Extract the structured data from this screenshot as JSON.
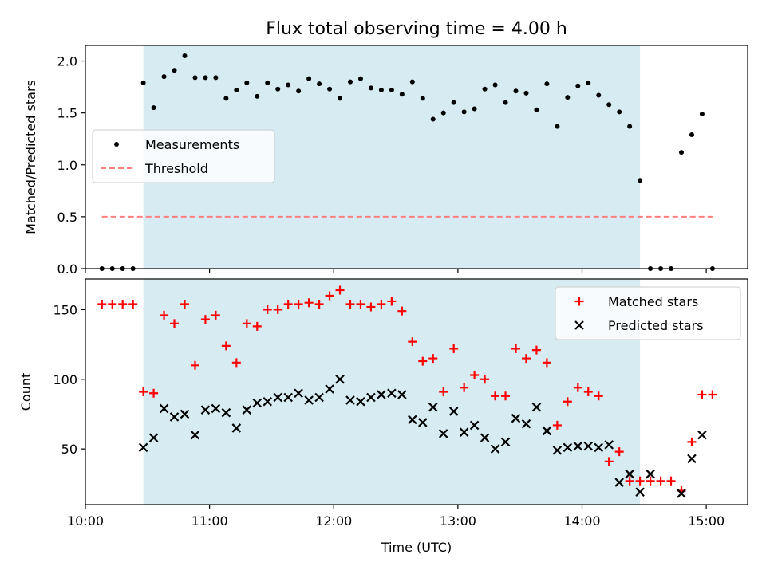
{
  "chart_data": {
    "title": "Flux total observing time = 4.00 h",
    "shaded_region": {
      "start": "10:28",
      "end": "14:28",
      "color": "#add8e6"
    },
    "x_axis": {
      "label": "Time (UTC)",
      "range": [
        "10:00",
        "15:20"
      ],
      "ticks": [
        "10:00",
        "11:00",
        "12:00",
        "13:00",
        "14:00",
        "15:00"
      ]
    },
    "panels": [
      {
        "name": "ratio",
        "type": "scatter",
        "ylabel": "Matched/Predicted stars",
        "ylim": [
          0,
          2.15
        ],
        "yticks": [
          "0.0",
          "0.5",
          "1.0",
          "1.5",
          "2.0"
        ],
        "legend": {
          "position": "center-left"
        },
        "series": [
          {
            "name": "Measurements",
            "marker": "dot",
            "color": "#000000",
            "points": [
              [
                "10:08",
                0
              ],
              [
                "10:13",
                0
              ],
              [
                "10:18",
                0
              ],
              [
                "10:23",
                0
              ],
              [
                "10:28",
                1.79
              ],
              [
                "10:33",
                1.55
              ],
              [
                "10:38",
                1.85
              ],
              [
                "10:43",
                1.91
              ],
              [
                "10:48",
                2.05
              ],
              [
                "10:53",
                1.84
              ],
              [
                "10:58",
                1.84
              ],
              [
                "11:03",
                1.84
              ],
              [
                "11:08",
                1.64
              ],
              [
                "11:13",
                1.72
              ],
              [
                "11:18",
                1.79
              ],
              [
                "11:23",
                1.66
              ],
              [
                "11:28",
                1.79
              ],
              [
                "11:33",
                1.73
              ],
              [
                "11:38",
                1.77
              ],
              [
                "11:43",
                1.71
              ],
              [
                "11:48",
                1.83
              ],
              [
                "11:53",
                1.78
              ],
              [
                "11:58",
                1.73
              ],
              [
                "12:03",
                1.64
              ],
              [
                "12:08",
                1.8
              ],
              [
                "12:13",
                1.83
              ],
              [
                "12:18",
                1.74
              ],
              [
                "12:23",
                1.72
              ],
              [
                "12:28",
                1.72
              ],
              [
                "12:33",
                1.68
              ],
              [
                "12:38",
                1.8
              ],
              [
                "12:43",
                1.64
              ],
              [
                "12:48",
                1.44
              ],
              [
                "12:53",
                1.5
              ],
              [
                "12:58",
                1.6
              ],
              [
                "13:03",
                1.51
              ],
              [
                "13:08",
                1.54
              ],
              [
                "13:13",
                1.73
              ],
              [
                "13:18",
                1.77
              ],
              [
                "13:23",
                1.6
              ],
              [
                "13:28",
                1.71
              ],
              [
                "13:33",
                1.69
              ],
              [
                "13:38",
                1.53
              ],
              [
                "13:43",
                1.78
              ],
              [
                "13:48",
                1.37
              ],
              [
                "13:53",
                1.65
              ],
              [
                "13:58",
                1.76
              ],
              [
                "14:03",
                1.79
              ],
              [
                "14:08",
                1.67
              ],
              [
                "14:13",
                1.58
              ],
              [
                "14:18",
                1.51
              ],
              [
                "14:23",
                1.37
              ],
              [
                "14:28",
                0.85
              ],
              [
                "14:33",
                0
              ],
              [
                "14:38",
                0
              ],
              [
                "14:43",
                0
              ],
              [
                "14:48",
                1.12
              ],
              [
                "14:53",
                1.29
              ],
              [
                "14:58",
                1.49
              ],
              [
                "15:03",
                0
              ]
            ]
          },
          {
            "name": "Threshold",
            "marker": "dashed-line",
            "color": "#ff7f7f",
            "x_start": "10:08",
            "x_end": "15:03",
            "value": 0.5
          }
        ]
      },
      {
        "name": "counts",
        "type": "scatter",
        "ylabel": "Count",
        "ylim": [
          10,
          172
        ],
        "yticks": [
          "50",
          "100",
          "150"
        ],
        "legend": {
          "position": "top-right"
        },
        "series": [
          {
            "name": "Matched stars",
            "marker": "plus",
            "color": "#ff0000",
            "points": [
              [
                "10:08",
                154
              ],
              [
                "10:13",
                154
              ],
              [
                "10:18",
                154
              ],
              [
                "10:23",
                154
              ],
              [
                "10:28",
                91
              ],
              [
                "10:33",
                90
              ],
              [
                "10:38",
                146
              ],
              [
                "10:43",
                140
              ],
              [
                "10:48",
                154
              ],
              [
                "10:53",
                110
              ],
              [
                "10:58",
                143
              ],
              [
                "11:03",
                146
              ],
              [
                "11:08",
                124
              ],
              [
                "11:13",
                112
              ],
              [
                "11:18",
                140
              ],
              [
                "11:23",
                138
              ],
              [
                "11:28",
                150
              ],
              [
                "11:33",
                150
              ],
              [
                "11:38",
                154
              ],
              [
                "11:43",
                154
              ],
              [
                "11:48",
                155
              ],
              [
                "11:53",
                154
              ],
              [
                "11:58",
                160
              ],
              [
                "12:03",
                164
              ],
              [
                "12:08",
                154
              ],
              [
                "12:13",
                154
              ],
              [
                "12:18",
                152
              ],
              [
                "12:23",
                154
              ],
              [
                "12:28",
                156
              ],
              [
                "12:33",
                149
              ],
              [
                "12:38",
                127
              ],
              [
                "12:43",
                113
              ],
              [
                "12:48",
                115
              ],
              [
                "12:53",
                91
              ],
              [
                "12:58",
                122
              ],
              [
                "13:03",
                94
              ],
              [
                "13:08",
                103
              ],
              [
                "13:13",
                100
              ],
              [
                "13:18",
                88
              ],
              [
                "13:23",
                88
              ],
              [
                "13:28",
                122
              ],
              [
                "13:33",
                115
              ],
              [
                "13:38",
                121
              ],
              [
                "13:43",
                112
              ],
              [
                "13:48",
                67
              ],
              [
                "13:53",
                84
              ],
              [
                "13:58",
                94
              ],
              [
                "14:03",
                91
              ],
              [
                "14:08",
                88
              ],
              [
                "14:13",
                41
              ],
              [
                "14:18",
                48
              ],
              [
                "14:23",
                27
              ],
              [
                "14:28",
                27
              ],
              [
                "14:33",
                27
              ],
              [
                "14:38",
                27
              ],
              [
                "14:43",
                27
              ],
              [
                "14:48",
                20
              ],
              [
                "14:53",
                55
              ],
              [
                "14:58",
                89
              ],
              [
                "15:03",
                89
              ]
            ]
          },
          {
            "name": "Predicted stars",
            "marker": "x",
            "color": "#000000",
            "points": [
              [
                "10:28",
                51
              ],
              [
                "10:33",
                58
              ],
              [
                "10:38",
                79
              ],
              [
                "10:43",
                73
              ],
              [
                "10:48",
                75
              ],
              [
                "10:53",
                60
              ],
              [
                "10:58",
                78
              ],
              [
                "11:03",
                79
              ],
              [
                "11:08",
                76
              ],
              [
                "11:13",
                65
              ],
              [
                "11:18",
                78
              ],
              [
                "11:23",
                83
              ],
              [
                "11:28",
                84
              ],
              [
                "11:33",
                87
              ],
              [
                "11:38",
                87
              ],
              [
                "11:43",
                90
              ],
              [
                "11:48",
                85
              ],
              [
                "11:53",
                87
              ],
              [
                "11:58",
                93
              ],
              [
                "12:03",
                100
              ],
              [
                "12:08",
                85
              ],
              [
                "12:13",
                84
              ],
              [
                "12:18",
                87
              ],
              [
                "12:23",
                89
              ],
              [
                "12:28",
                90
              ],
              [
                "12:33",
                89
              ],
              [
                "12:38",
                71
              ],
              [
                "12:43",
                69
              ],
              [
                "12:48",
                80
              ],
              [
                "12:53",
                61
              ],
              [
                "12:58",
                77
              ],
              [
                "13:03",
                62
              ],
              [
                "13:08",
                67
              ],
              [
                "13:13",
                58
              ],
              [
                "13:18",
                50
              ],
              [
                "13:23",
                55
              ],
              [
                "13:28",
                72
              ],
              [
                "13:33",
                68
              ],
              [
                "13:38",
                80
              ],
              [
                "13:43",
                63
              ],
              [
                "13:48",
                49
              ],
              [
                "13:53",
                51
              ],
              [
                "13:58",
                52
              ],
              [
                "14:03",
                52
              ],
              [
                "14:08",
                51
              ],
              [
                "14:13",
                53
              ],
              [
                "14:18",
                26
              ],
              [
                "14:23",
                32
              ],
              [
                "14:28",
                19
              ],
              [
                "14:33",
                32
              ],
              [
                "14:48",
                18
              ],
              [
                "14:53",
                43
              ],
              [
                "14:58",
                60
              ]
            ]
          }
        ]
      }
    ]
  }
}
